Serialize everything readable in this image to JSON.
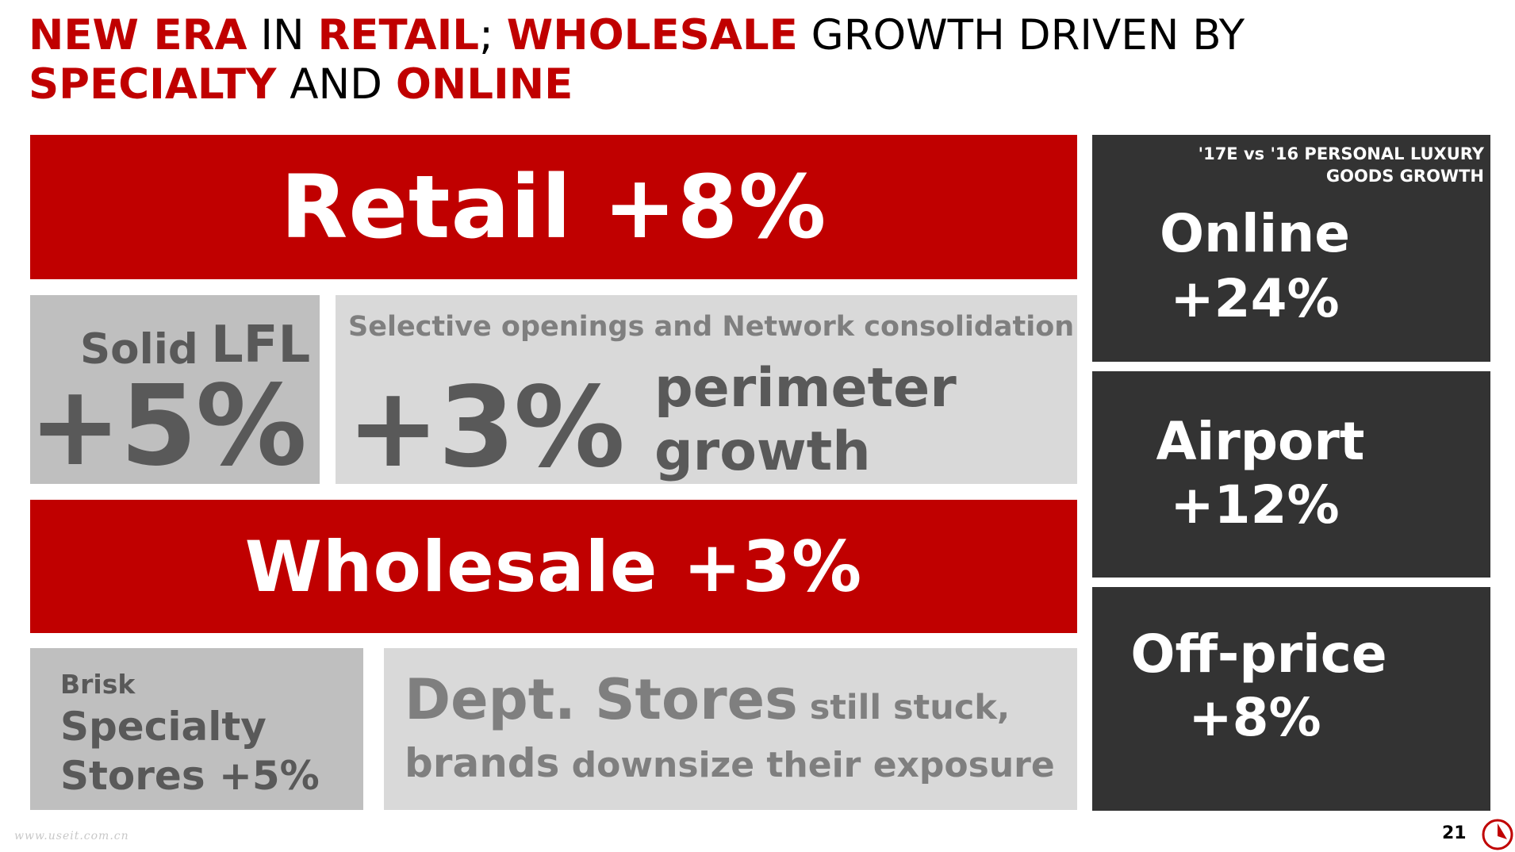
{
  "title": {
    "p1": "NEW ERA",
    "p2": " IN ",
    "p3": "RETAIL",
    "p4": "; ",
    "p5": "WHOLESALE",
    "p6": " GROWTH DRIVEN BY",
    "p7": "SPECIALTY",
    "p8": " AND ",
    "p9": "ONLINE"
  },
  "retail": {
    "label": "Retail +8%"
  },
  "lfl": {
    "solid": "Solid",
    "lfl": "LFL",
    "value": "+5%"
  },
  "openings": {
    "subtitle": "Selective openings and Network consolidation",
    "value": "+3%",
    "desc_line1": "perimeter",
    "desc_line2": "growth"
  },
  "wholesale": {
    "label": "Wholesale +3%"
  },
  "specialty": {
    "brisk": "Brisk",
    "line1": "Specialty",
    "line2": "Stores +5%"
  },
  "dept": {
    "head": "Dept. Stores",
    "still": " still stuck,",
    "brands": "brands",
    "rest": " downsize their exposure"
  },
  "channels": {
    "header_line1": "'17E vs '16 PERSONAL LUXURY",
    "header_line2": "GOODS GROWTH",
    "online": {
      "name": "Online",
      "value": "+24%"
    },
    "airport": {
      "name": "Airport",
      "value": "+12%"
    },
    "offprice": {
      "name": "Off-price",
      "value": "+8%"
    }
  },
  "footer": {
    "watermark": "www.useit.com.cn",
    "page_number": "21",
    "logo_icon": "brand-logo-icon"
  },
  "colors": {
    "accent_red": "#c00000",
    "dark_panel": "#333333",
    "mid_gray": "#bfbfbf",
    "light_gray": "#d9d9d9"
  }
}
